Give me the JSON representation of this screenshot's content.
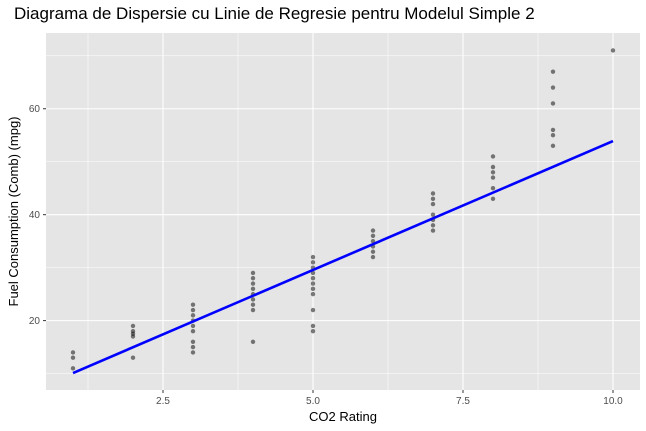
{
  "chart_data": {
    "type": "scatter",
    "title": "Diagrama de Dispersie cu Linie de Regresie pentru Modelul Simple 2",
    "xlabel": "CO2 Rating",
    "ylabel": "Fuel Consumption (Comb) (mpg)",
    "xlim": [
      0.55,
      10.45
    ],
    "ylim": [
      6.9,
      74.3
    ],
    "x_ticks": [
      2.5,
      5.0,
      7.5,
      10.0
    ],
    "x_tick_labels": [
      "2.5",
      "5.0",
      "7.5",
      "10.0"
    ],
    "y_ticks": [
      20,
      40,
      60
    ],
    "y_tick_labels": [
      "20",
      "40",
      "60"
    ],
    "grid": true,
    "legend": "none",
    "colors": {
      "panel": "#e5e5e5",
      "grid": "#ffffff",
      "points": "#000000",
      "line": "#0000ff"
    },
    "points": [
      [
        1,
        14
      ],
      [
        1,
        13
      ],
      [
        1,
        11
      ],
      [
        2,
        19
      ],
      [
        2,
        18
      ],
      [
        2,
        17.5
      ],
      [
        2,
        17
      ],
      [
        2,
        13
      ],
      [
        3,
        23
      ],
      [
        3,
        22
      ],
      [
        3,
        21
      ],
      [
        3,
        20
      ],
      [
        3,
        19
      ],
      [
        3,
        18
      ],
      [
        3,
        16
      ],
      [
        3,
        15
      ],
      [
        3,
        14
      ],
      [
        4,
        29
      ],
      [
        4,
        28
      ],
      [
        4,
        27
      ],
      [
        4,
        26
      ],
      [
        4,
        25
      ],
      [
        4,
        24
      ],
      [
        4,
        23
      ],
      [
        4,
        22
      ],
      [
        4,
        16
      ],
      [
        5,
        32
      ],
      [
        5,
        31
      ],
      [
        5,
        30
      ],
      [
        5,
        29
      ],
      [
        5,
        28
      ],
      [
        5,
        27
      ],
      [
        5,
        26
      ],
      [
        5,
        25
      ],
      [
        5,
        22
      ],
      [
        5,
        19
      ],
      [
        5,
        18
      ],
      [
        6,
        37
      ],
      [
        6,
        36
      ],
      [
        6,
        35
      ],
      [
        6,
        34
      ],
      [
        6,
        33
      ],
      [
        6,
        32
      ],
      [
        7,
        44
      ],
      [
        7,
        43
      ],
      [
        7,
        42
      ],
      [
        7,
        40
      ],
      [
        7,
        39
      ],
      [
        7,
        38
      ],
      [
        7,
        37
      ],
      [
        8,
        51
      ],
      [
        8,
        49
      ],
      [
        8,
        48
      ],
      [
        8,
        47
      ],
      [
        8,
        45
      ],
      [
        8,
        43
      ],
      [
        9,
        67
      ],
      [
        9,
        64
      ],
      [
        9,
        61
      ],
      [
        9,
        56
      ],
      [
        9,
        55
      ],
      [
        9,
        53
      ],
      [
        10,
        71
      ]
    ],
    "regression_line": {
      "x": [
        1,
        10
      ],
      "y": [
        10.1,
        53.9
      ]
    }
  }
}
